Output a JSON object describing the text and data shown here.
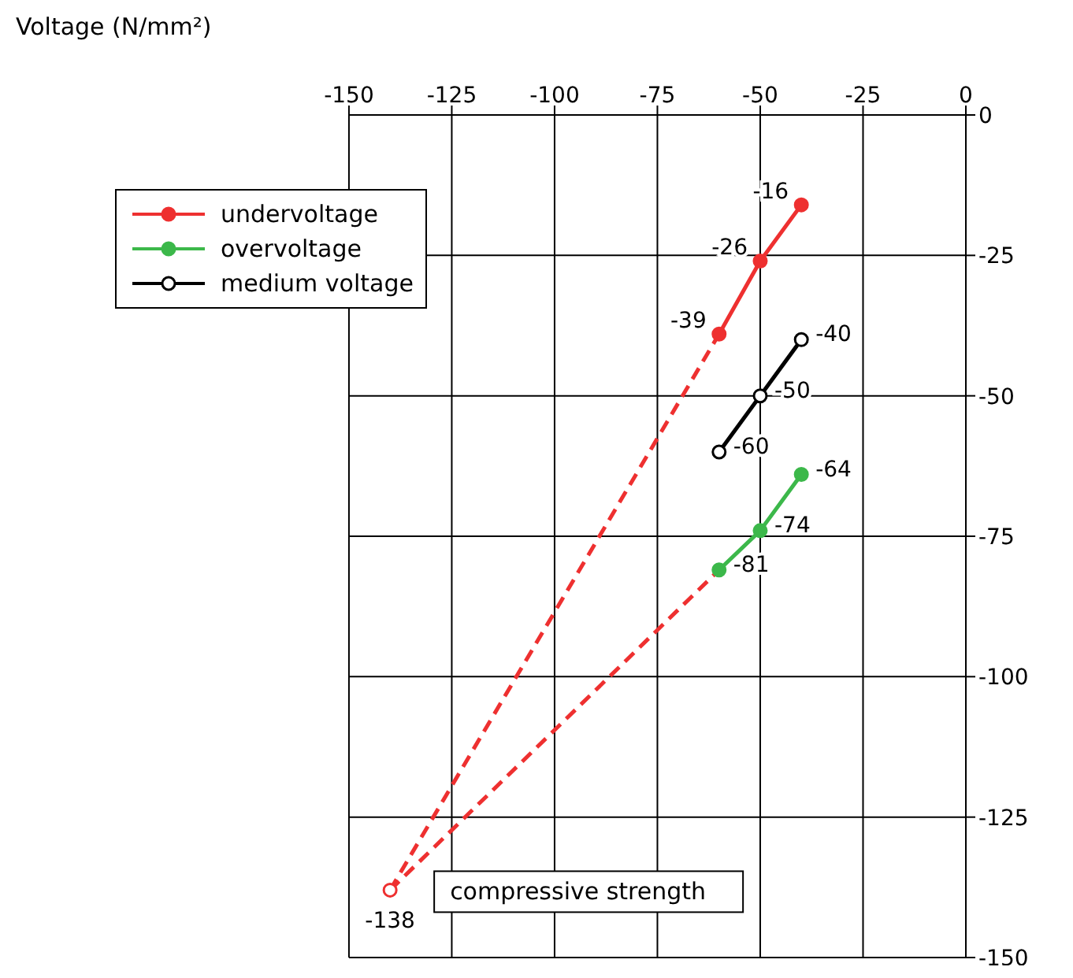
{
  "chart_data": {
    "type": "line",
    "xlim": [
      -150,
      0
    ],
    "xticks": [
      -150,
      -125,
      -100,
      -75,
      -50,
      -25,
      0
    ],
    "ylim": [
      -150,
      0
    ],
    "yticks": [
      -150,
      -125,
      -100,
      -75,
      -50,
      -25,
      0
    ],
    "grid": true,
    "legend": "top left",
    "marker": "circle",
    "annotations": [
      "Voltage (N/mm²)",
      {
        "text": "compressive strength",
        "x": -140,
        "y": -138
      }
    ],
    "series": [
      {
        "name": "undervoltage",
        "color": "#ee3030",
        "x": [
          -60,
          -50,
          -40
        ],
        "values": [
          -39,
          -26,
          -16
        ],
        "value_labels": [
          "-39",
          "-26",
          "-16"
        ],
        "line_style": "solid"
      },
      {
        "name": "overvoltage",
        "color": "#3cb84a",
        "x": [
          -60,
          -50,
          -40
        ],
        "values": [
          -81,
          -74,
          -64
        ],
        "value_labels": [
          "-81",
          "-74",
          "-64"
        ],
        "line_style": "solid"
      },
      {
        "name": "medium voltage",
        "color": "#000000",
        "x": [
          -60,
          -50,
          -40
        ],
        "values": [
          -60,
          -50,
          -40
        ],
        "value_labels": [
          "-60",
          "-50",
          "-40"
        ],
        "line_style": "solid"
      },
      {
        "color": "#ee3030",
        "x": [
          -140,
          -60
        ],
        "values": [
          -138,
          -39
        ],
        "line_style": "dashed",
        "marker": "none"
      },
      {
        "color": "#ee3030",
        "x": [
          -140,
          -60
        ],
        "values": [
          -138,
          -81
        ],
        "line_style": "dashed",
        "marker": "none"
      },
      {
        "color": "#ee3030",
        "x": [
          -140
        ],
        "values": [
          -138
        ],
        "value_labels": [
          "-138"
        ],
        "line_style": "solid"
      }
    ]
  }
}
